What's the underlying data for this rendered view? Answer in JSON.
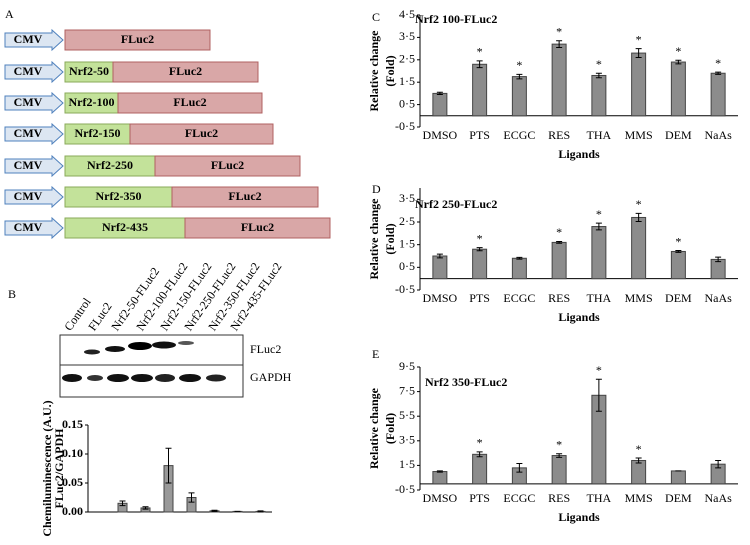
{
  "panel_labels": [
    "A",
    "B",
    "C",
    "D",
    "E"
  ],
  "constructs": [
    {
      "promoter": "CMV",
      "reporter": "FLuc2"
    },
    {
      "promoter": "CMV",
      "fragment": "Nrf2-50",
      "reporter": "FLuc2"
    },
    {
      "promoter": "CMV",
      "fragment": "Nrf2-100",
      "reporter": "FLuc2"
    },
    {
      "promoter": "CMV",
      "fragment": "Nrf2-150",
      "reporter": "FLuc2"
    },
    {
      "promoter": "CMV",
      "fragment": "Nrf2-250",
      "reporter": "FLuc2"
    },
    {
      "promoter": "CMV",
      "fragment": "Nrf2-350",
      "reporter": "FLuc2"
    },
    {
      "promoter": "CMV",
      "fragment": "Nrf2-435",
      "reporter": "FLuc2"
    }
  ],
  "blot": {
    "lanes": [
      "Control",
      "FLuc2",
      "Nrf2-50-FLuc2",
      "Nrf2-100-FLuc2",
      "Nrf2-150-FLuc2",
      "Nrf2-250-FLuc2",
      "Nrf2-350-FLuc2",
      "Nrf2-435-FLuc2"
    ],
    "bands": [
      "FLuc2",
      "GAPDH"
    ]
  },
  "chart_data": [
    {
      "type": "bar",
      "ylabel": [
        "Chemiluminescence (A.U.)",
        "FLuc2/GAPDH"
      ],
      "categories": [
        null,
        null,
        null,
        null,
        null,
        null,
        null,
        null
      ],
      "values": [
        0,
        0.015,
        0.007,
        0.08,
        0.025,
        0.002,
        0.001,
        0.001
      ],
      "errors": [
        0,
        0.004,
        0.002,
        0.03,
        0.008,
        0.001,
        0,
        0.001
      ],
      "color": "#999999",
      "ylim": [
        0,
        0.15
      ],
      "yticks": [
        {
          "value": 0,
          "label": "0.00"
        },
        {
          "value": 0.05,
          "label": "0.05"
        },
        {
          "value": 0.1,
          "label": "0.10"
        },
        {
          "value": 0.15,
          "label": "0.15"
        }
      ]
    },
    {
      "type": "bar",
      "title": "Nrf2 100-FLuc2",
      "xlabel": "Ligands",
      "ylabel": [
        "Relative change",
        "(Fold)"
      ],
      "categories": [
        "DMSO",
        "PTS",
        "ECGC",
        "RES",
        "THA",
        "MMS",
        "DEM",
        "NaAs"
      ],
      "values": [
        1.0,
        2.3,
        1.75,
        3.2,
        1.8,
        2.8,
        2.4,
        1.9
      ],
      "errors": [
        0.05,
        0.15,
        0.1,
        0.15,
        0.1,
        0.2,
        0.08,
        0.05
      ],
      "annotation": "*",
      "significant": [
        false,
        true,
        true,
        true,
        true,
        true,
        true,
        true
      ],
      "color": "#8c8c8c",
      "ylim": [
        -0.5,
        4.5
      ],
      "yticks": [
        {
          "value": 4.5,
          "label": "4·5"
        },
        {
          "value": 3.5,
          "label": "3·5"
        },
        {
          "value": 2.5,
          "label": "2·5"
        },
        {
          "value": 1.5,
          "label": "1·5"
        },
        {
          "value": 0.5,
          "label": "0·5"
        },
        {
          "value": -0.5,
          "label": "-0·5"
        }
      ]
    },
    {
      "type": "bar",
      "title": "Nrf2 250-FLuc2",
      "xlabel": "Ligands",
      "ylabel": [
        "Relative change",
        "(Fold)"
      ],
      "categories": [
        "DMSO",
        "PTS",
        "ECGC",
        "RES",
        "THA",
        "MMS",
        "DEM",
        "NaAs"
      ],
      "values": [
        1.0,
        1.3,
        0.9,
        1.6,
        2.3,
        2.7,
        1.2,
        0.85
      ],
      "errors": [
        0.08,
        0.07,
        0.04,
        0.04,
        0.15,
        0.18,
        0.04,
        0.1
      ],
      "annotation": "*",
      "significant": [
        false,
        true,
        false,
        true,
        true,
        true,
        true,
        false
      ],
      "color": "#8c8c8c",
      "ylim": [
        -0.5,
        4.0
      ],
      "yticks": [
        {
          "value": 3.5,
          "label": "3·5"
        },
        {
          "value": 2.5,
          "label": "2·5"
        },
        {
          "value": 1.5,
          "label": "1·5"
        },
        {
          "value": 0.5,
          "label": "0·5"
        },
        {
          "value": -0.5,
          "label": "-0·5"
        }
      ]
    },
    {
      "type": "bar",
      "title": "Nrf2 350-FLuc2",
      "xlabel": "Ligands",
      "ylabel": [
        "Relative change",
        "(Fold)"
      ],
      "categories": [
        "DMSO",
        "PTS",
        "ECGC",
        "RES",
        "THA",
        "MMS",
        "DEM",
        "NaAs"
      ],
      "values": [
        1.0,
        2.4,
        1.3,
        2.3,
        7.2,
        1.9,
        1.05,
        1.6
      ],
      "errors": [
        0.05,
        0.2,
        0.35,
        0.15,
        1.3,
        0.2,
        0,
        0.3
      ],
      "annotation": "*",
      "significant": [
        false,
        true,
        false,
        true,
        true,
        true,
        false,
        false
      ],
      "color": "#8c8c8c",
      "ylim": [
        -0.5,
        9.5
      ],
      "yticks": [
        {
          "value": 9.5,
          "label": "9·5"
        },
        {
          "value": 7.5,
          "label": "7·5"
        },
        {
          "value": 5.5,
          "label": "5·5"
        },
        {
          "value": 3.5,
          "label": "3·5"
        },
        {
          "value": 1.5,
          "label": "1·5"
        },
        {
          "value": -0.5,
          "label": "-0·5"
        }
      ]
    }
  ]
}
